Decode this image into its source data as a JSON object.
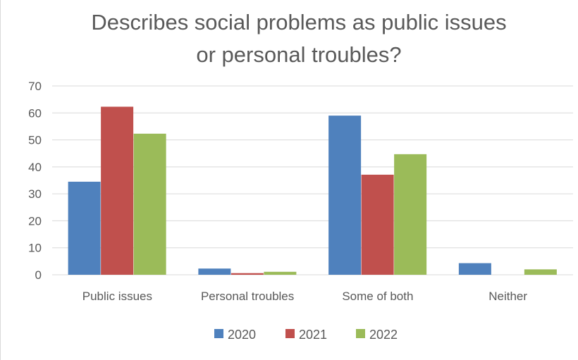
{
  "chart_data": {
    "type": "bar",
    "title_lines": [
      "Describes social problems as public issues",
      "or personal troubles?"
    ],
    "categories": [
      "Public issues",
      "Personal troubles",
      "Some of both",
      "Neither"
    ],
    "series": [
      {
        "name": "2020",
        "color": "#4f81bd",
        "values": [
          34.5,
          2.3,
          59,
          4.3
        ]
      },
      {
        "name": "2021",
        "color": "#c0504d",
        "values": [
          62.3,
          0.6,
          37.1,
          0
        ]
      },
      {
        "name": "2022",
        "color": "#9bbb59",
        "values": [
          52.3,
          1.1,
          44.7,
          2
        ]
      }
    ],
    "ylim": [
      0,
      70
    ],
    "yticks": [
      0,
      10,
      20,
      30,
      40,
      50,
      60,
      70
    ],
    "grid": true,
    "legend_position": "bottom",
    "xlabel": "",
    "ylabel": ""
  }
}
